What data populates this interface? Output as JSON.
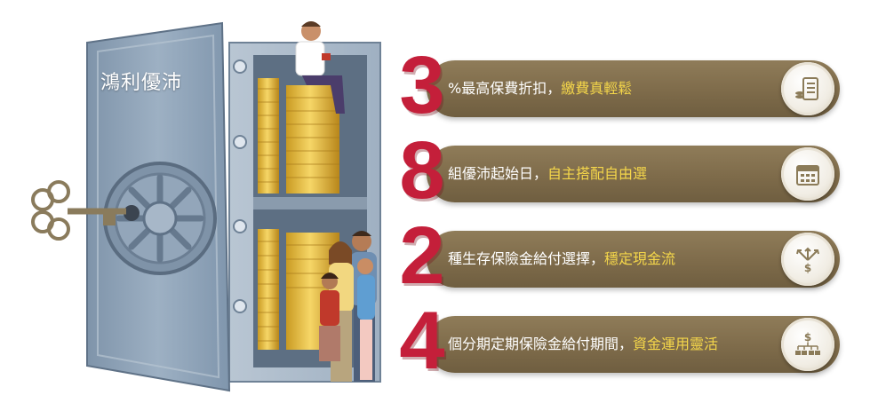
{
  "vault": {
    "title": "鴻利優沛"
  },
  "colors": {
    "digit": "#c41f3a",
    "bar": "#7e6b4a",
    "highlight": "#f4d64a",
    "vault": "#8fa3b7"
  },
  "features": [
    {
      "digit": "3",
      "text": "%最高保費折扣，",
      "highlight": "繳費真輕鬆",
      "icon": "payment-list-icon"
    },
    {
      "digit": "8",
      "text": "組優沛起始日，",
      "highlight": "自主搭配自由選",
      "icon": "calendar-icon"
    },
    {
      "digit": "2",
      "text": "種生存保險金給付選擇，",
      "highlight": "穩定現金流",
      "icon": "money-split-icon"
    },
    {
      "digit": "4",
      "text": "個分期定期保險金給付期間，",
      "highlight": "資金運用靈活",
      "icon": "money-distribution-icon"
    }
  ]
}
